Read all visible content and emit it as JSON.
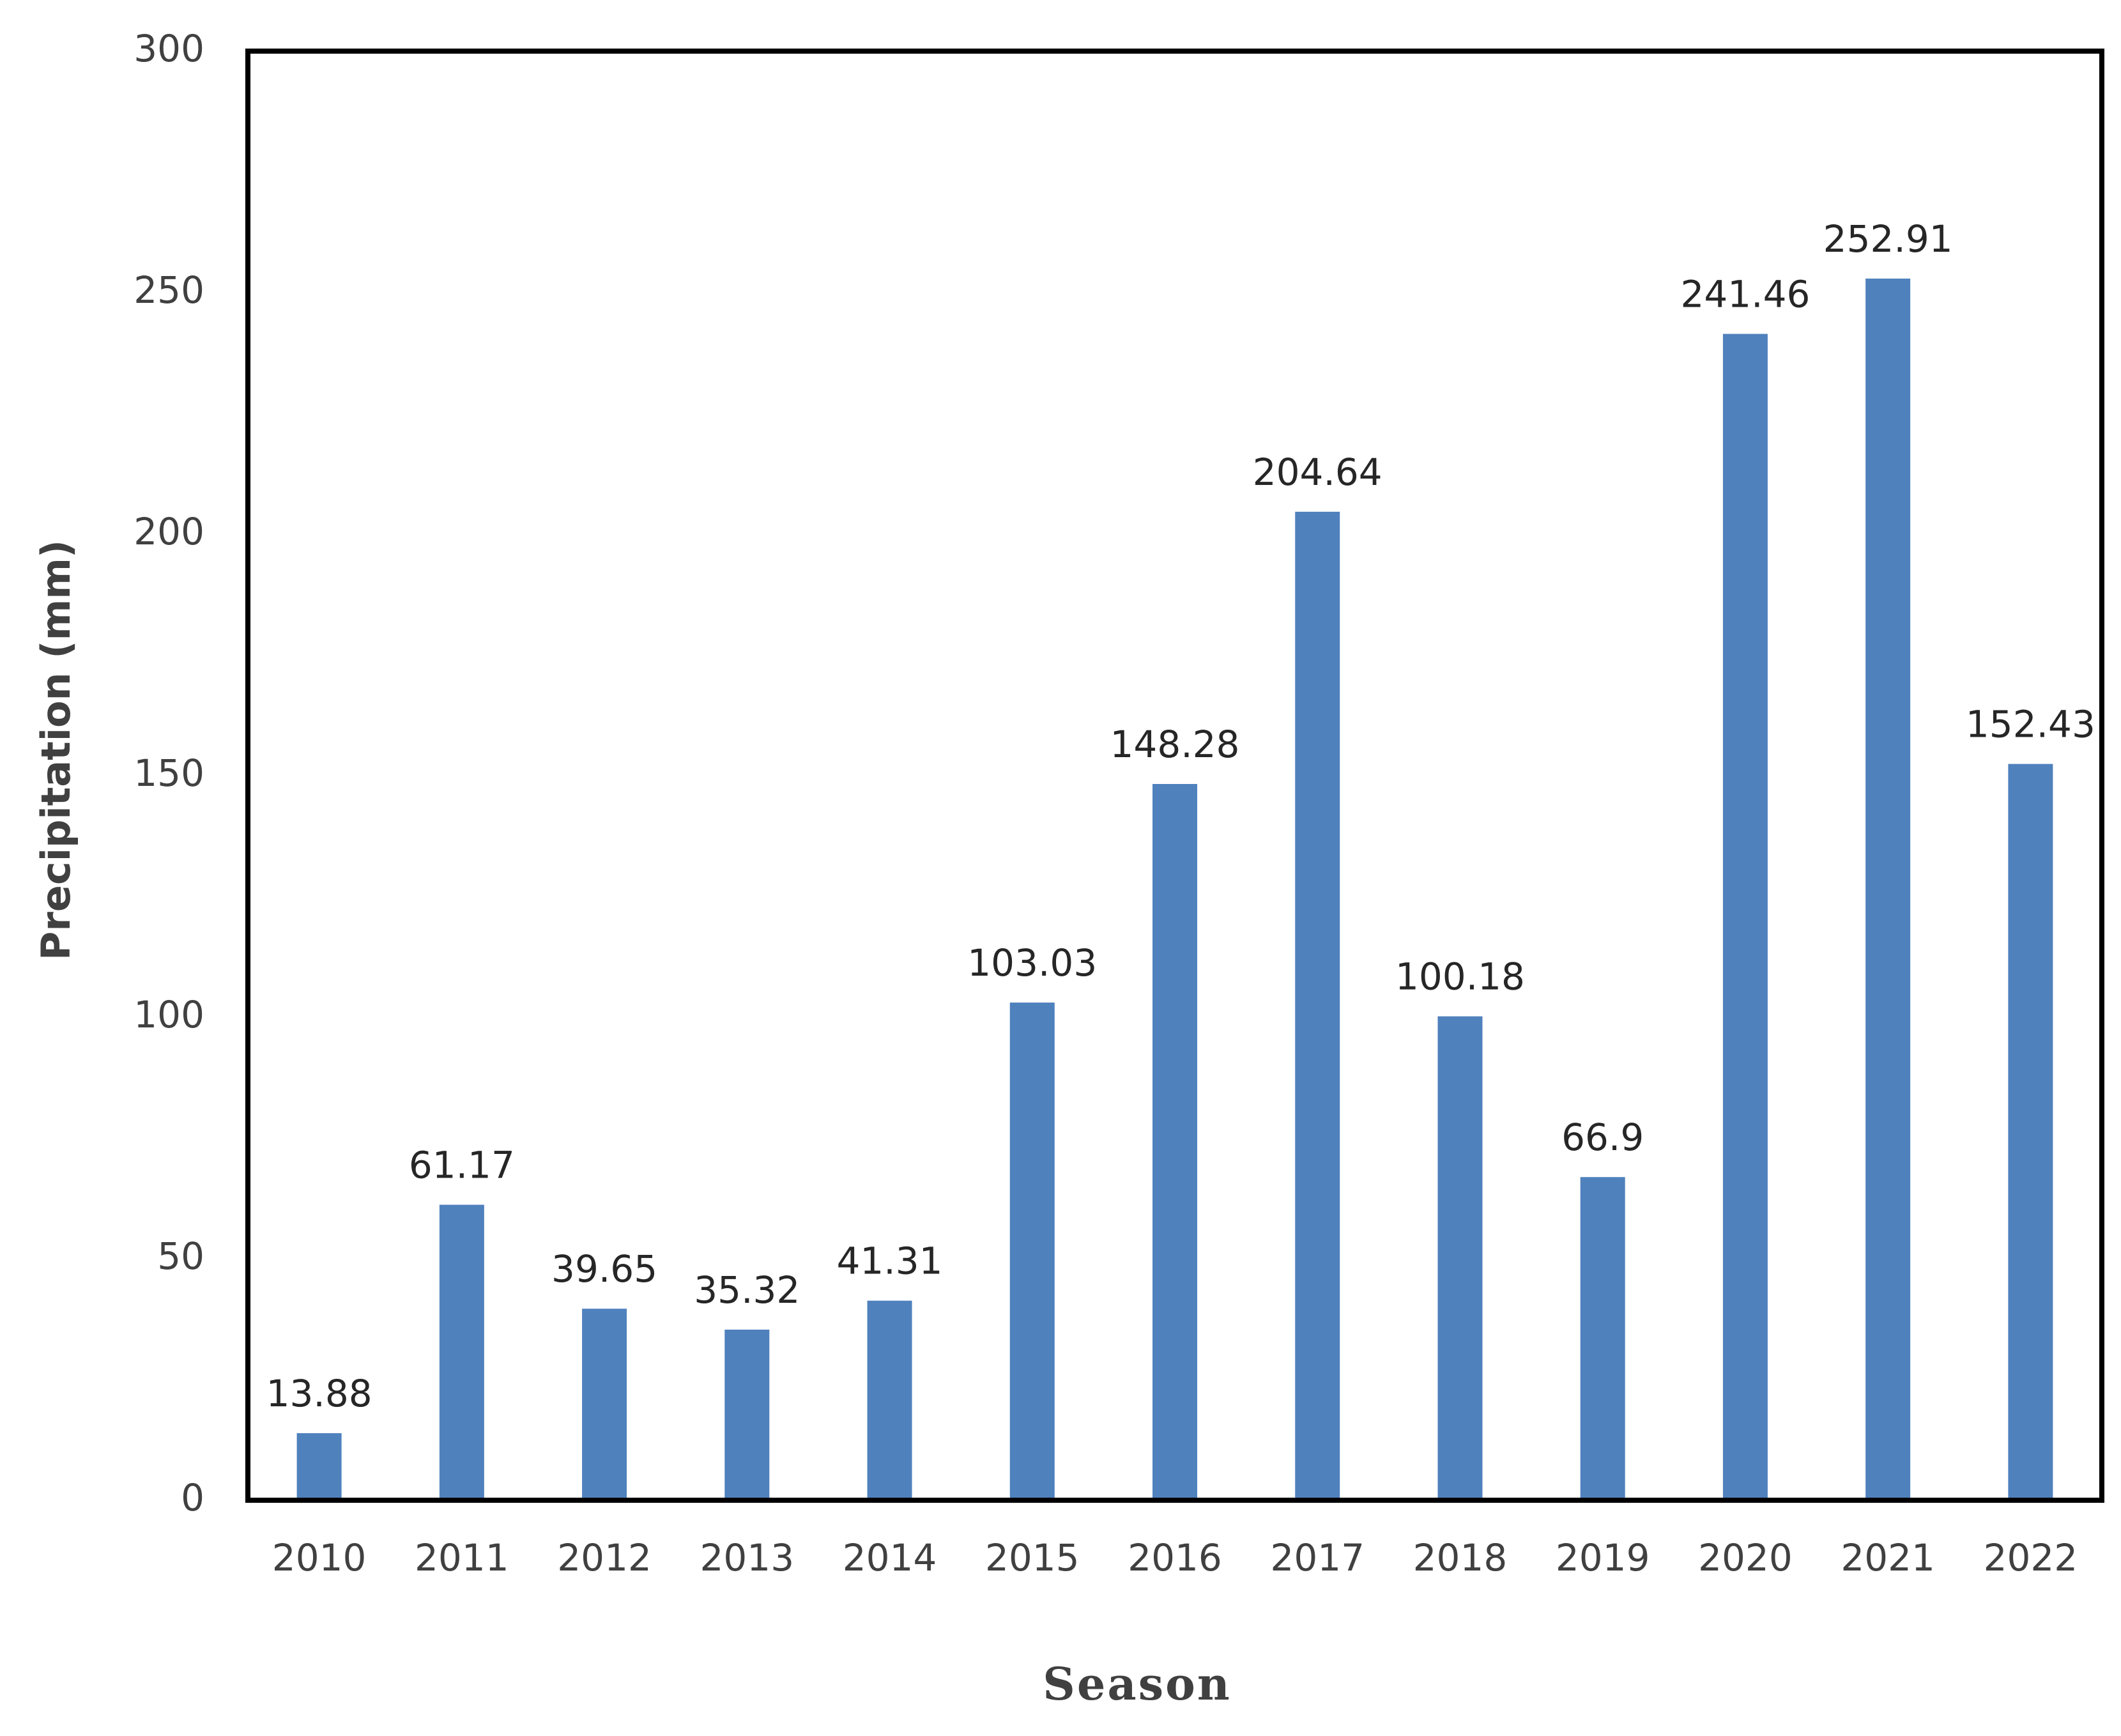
{
  "chart_data": {
    "type": "bar",
    "title": "",
    "xlabel": "Season",
    "ylabel": "Precipitation (mm)",
    "ylim": [
      0,
      300
    ],
    "yticks": [
      "0",
      "50",
      "100",
      "150",
      "200",
      "250",
      "300"
    ],
    "categories": [
      "2010",
      "2011",
      "2012",
      "2013",
      "2014",
      "2015",
      "2016",
      "2017",
      "2018",
      "2019",
      "2020",
      "2021",
      "2022"
    ],
    "values": [
      13.88,
      61.17,
      39.65,
      35.32,
      41.31,
      103.03,
      148.28,
      204.64,
      100.18,
      66.9,
      241.46,
      252.91,
      152.43
    ],
    "data_labels": [
      "13.88",
      "61.17",
      "39.65",
      "35.32",
      "41.31",
      "103.03",
      "148.28",
      "204.64",
      "100.18",
      "66.9",
      "241.46",
      "252.91",
      "152.43"
    ],
    "bar_color": "#4f81bd",
    "grid": false,
    "legend": "none"
  }
}
